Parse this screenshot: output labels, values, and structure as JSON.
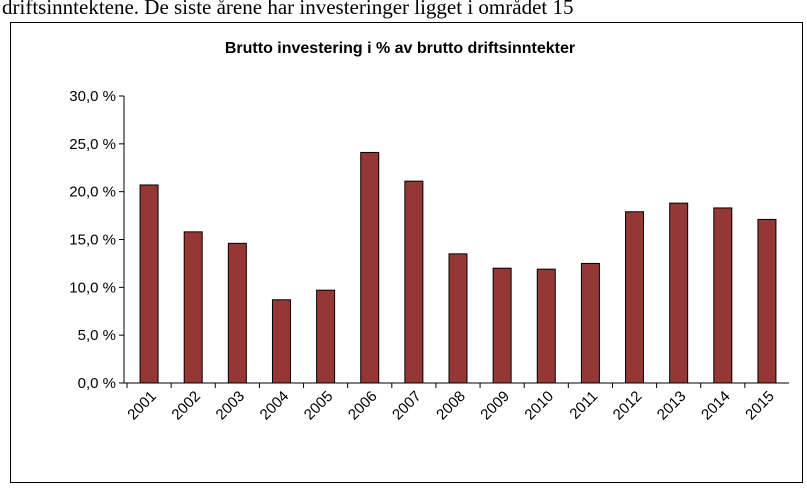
{
  "header_text": "driftsinntektene. De siste årene har investeringer ligget i området 15",
  "chart_data": {
    "type": "bar",
    "title": "Brutto investering i % av brutto driftsinntekter",
    "categories": [
      "2001",
      "2002",
      "2003",
      "2004",
      "2005",
      "2006",
      "2007",
      "2008",
      "2009",
      "2010",
      "2011",
      "2012",
      "2013",
      "2014",
      "2015"
    ],
    "values": [
      20.7,
      15.8,
      14.6,
      8.7,
      9.7,
      24.1,
      21.1,
      13.5,
      12.0,
      11.9,
      12.5,
      17.9,
      18.8,
      18.3,
      17.1
    ],
    "color": "#953735",
    "ylim": [
      0,
      30
    ],
    "yticks": [
      {
        "value": 0,
        "label": "0,0 %"
      },
      {
        "value": 5,
        "label": "5,0 %"
      },
      {
        "value": 10,
        "label": "10,0 %"
      },
      {
        "value": 15,
        "label": "15,0 %"
      },
      {
        "value": 20,
        "label": "20,0 %"
      },
      {
        "value": 25,
        "label": "25,0 %"
      },
      {
        "value": 30,
        "label": "30,0 %"
      }
    ],
    "grid": false
  }
}
